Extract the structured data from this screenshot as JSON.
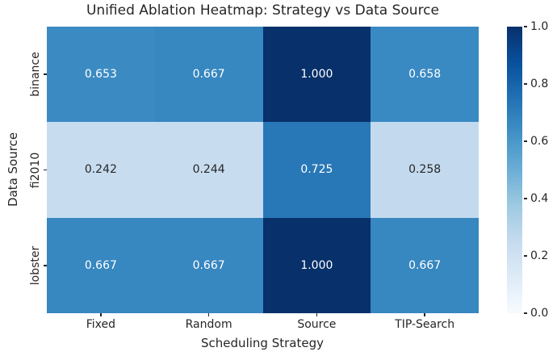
{
  "figure": {
    "title": "Unified Ablation Heatmap: Strategy vs Data Source",
    "xlabel": "Scheduling Strategy",
    "ylabel": "Data Source"
  },
  "chart_data": {
    "type": "heatmap",
    "title": "Unified Ablation Heatmap: Strategy vs Data Source",
    "xlabel": "Scheduling Strategy",
    "ylabel": "Data Source",
    "x_categories": [
      "Fixed",
      "Random",
      "Source",
      "TIP-Search"
    ],
    "y_categories": [
      "binance",
      "fi2010",
      "lobster"
    ],
    "values": [
      [
        0.653,
        0.667,
        1.0,
        0.658
      ],
      [
        0.242,
        0.244,
        0.725,
        0.258
      ],
      [
        0.667,
        0.667,
        1.0,
        0.667
      ]
    ],
    "value_decimals": 3,
    "colormap_stops": [
      "#f7fbff",
      "#deebf7",
      "#c6dbef",
      "#9ecae1",
      "#6baed6",
      "#4292c6",
      "#2171b5",
      "#08519c",
      "#08306b"
    ],
    "annotation_color_light": "#ffffff",
    "annotation_color_dark": "#262626",
    "colorbar": {
      "vmin": 0.0,
      "vmax": 1.0,
      "tick_labels": [
        "1.0",
        "0.8",
        "0.6",
        "0.4",
        "0.2",
        "0.0"
      ]
    },
    "legend": "colorbar-right",
    "grid": false
  }
}
